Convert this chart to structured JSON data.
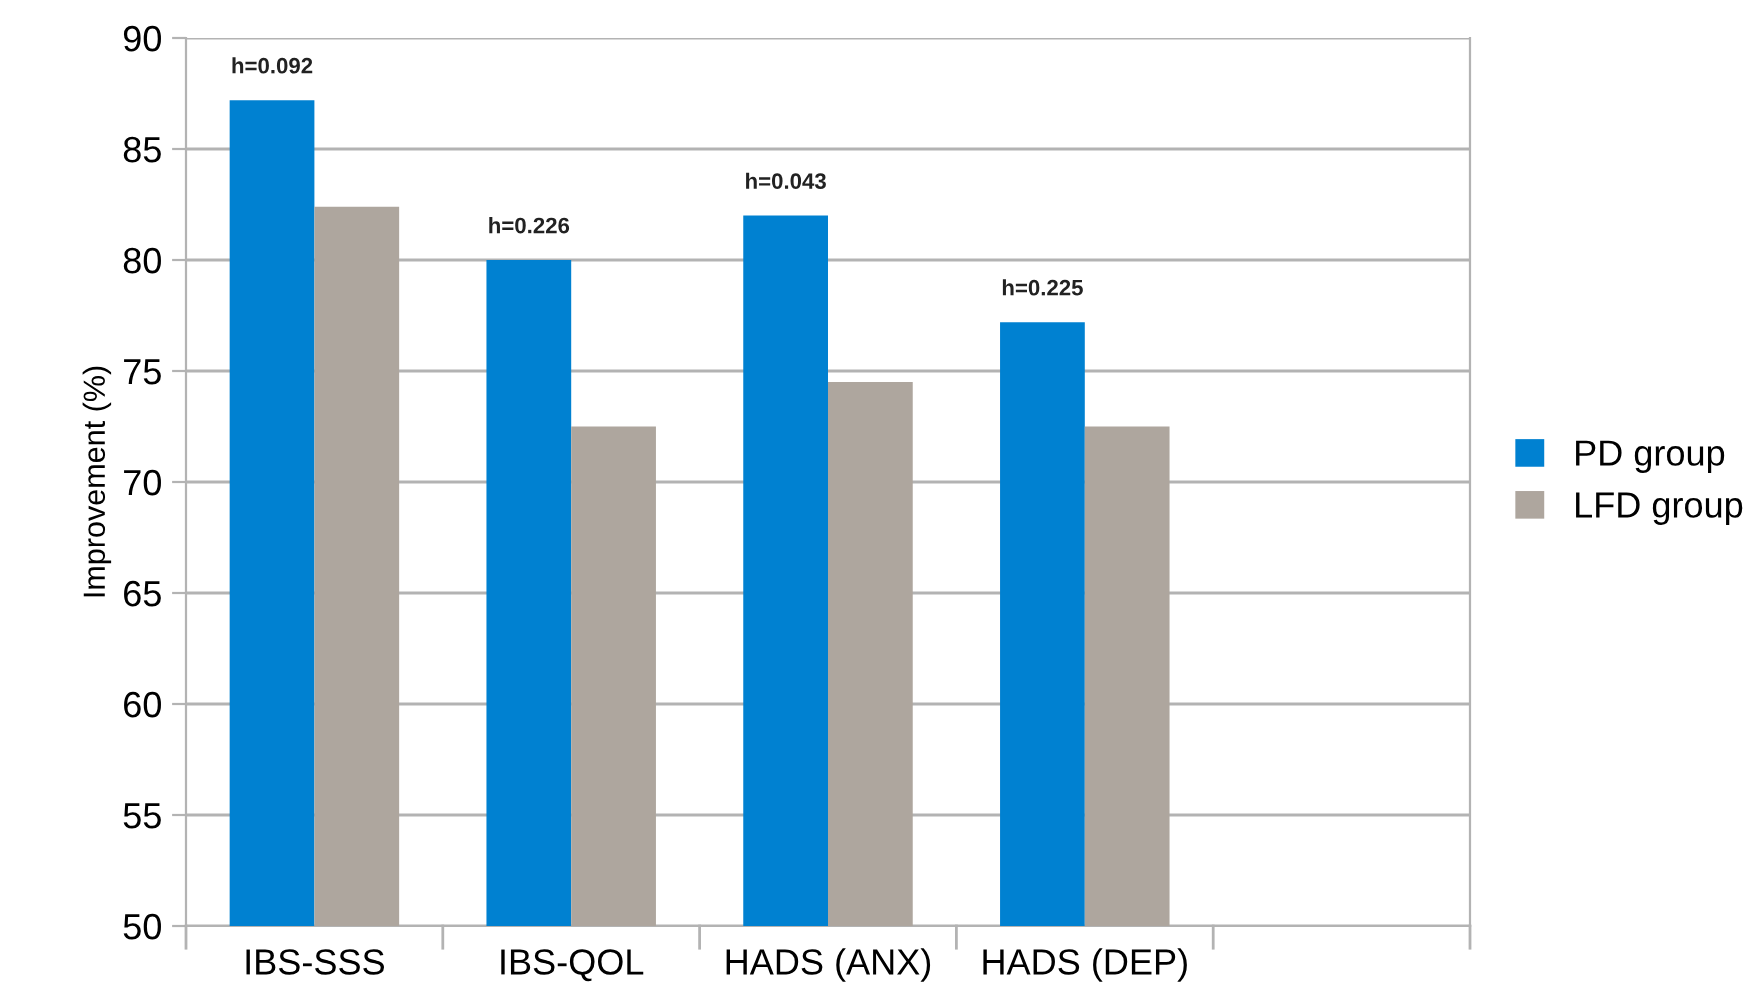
{
  "chart_data": {
    "type": "bar",
    "ylabel": "Improvement (%)",
    "categories": [
      "IBS-SSS",
      "IBS-QOL",
      "HADS (ANX)",
      "HADS (DEP)",
      null
    ],
    "series": [
      {
        "name": "PD group",
        "color": "#0081d1",
        "values": [
          87.2,
          80.0,
          82.0,
          77.2,
          null
        ]
      },
      {
        "name": "LFD group",
        "color": "#aea69e",
        "values": [
          82.4,
          72.5,
          74.5,
          72.5,
          null
        ]
      }
    ],
    "annotations": [
      {
        "text": "h=0.092",
        "x": "IBS-SSS",
        "y": 87.2
      },
      {
        "text": "h=0.226",
        "x": "IBS-QOL",
        "y": 80.0
      },
      {
        "text": "h=0.043",
        "x": "HADS (ANX)",
        "y": 82.0
      },
      {
        "text": "h=0.225",
        "x": "HADS (DEP)",
        "y": 77.2
      }
    ],
    "ylim": [
      50,
      90
    ],
    "yticks": [
      50,
      55,
      60,
      65,
      70,
      75,
      80,
      85,
      90
    ],
    "grid": "y",
    "legend": "right"
  }
}
